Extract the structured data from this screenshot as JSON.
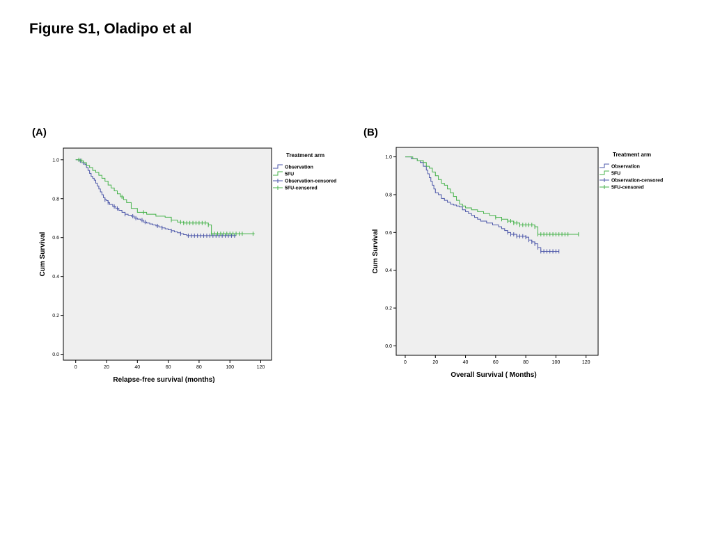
{
  "figure_title": "Figure S1, Oladipo et al",
  "colors": {
    "observation": "#4a55a8",
    "fiveFU": "#44b249",
    "plot_bg": "#efefef",
    "axis": "#000000"
  },
  "chart_data": [
    {
      "panel_label": "(A)",
      "type": "line",
      "step": true,
      "xlabel": "Relapse-free survival (months)",
      "ylabel": "Cum Survival",
      "xlim": [
        -8,
        127
      ],
      "ylim": [
        -0.03,
        1.06
      ],
      "xticks": [
        0,
        20,
        40,
        60,
        80,
        100,
        120
      ],
      "yticks": [
        "0.0",
        "0.2",
        "0.4",
        "0.6",
        "0.8",
        "1.0"
      ],
      "grid": false,
      "legend_title": "Treatment arm",
      "legend_position": "right-outside",
      "legend": [
        "Observation",
        "5FU",
        "Observation-censored",
        "5FU-censored"
      ],
      "series": [
        {
          "name": "Observation",
          "color_key": "observation",
          "x": [
            0,
            2,
            4,
            6,
            7,
            8,
            9,
            10,
            11,
            12,
            13,
            14,
            15,
            16,
            17,
            18,
            19,
            20,
            21,
            22,
            24,
            26,
            28,
            30,
            32,
            34,
            36,
            38,
            40,
            42,
            44,
            46,
            48,
            50,
            52,
            54,
            56,
            58,
            60,
            62,
            64,
            66,
            68,
            70,
            72,
            104
          ],
          "y": [
            1.0,
            0.995,
            0.985,
            0.975,
            0.96,
            0.945,
            0.93,
            0.915,
            0.905,
            0.895,
            0.88,
            0.865,
            0.85,
            0.835,
            0.82,
            0.805,
            0.795,
            0.79,
            0.78,
            0.77,
            0.76,
            0.75,
            0.74,
            0.73,
            0.72,
            0.715,
            0.71,
            0.7,
            0.695,
            0.69,
            0.68,
            0.675,
            0.67,
            0.665,
            0.66,
            0.655,
            0.65,
            0.645,
            0.64,
            0.635,
            0.63,
            0.625,
            0.62,
            0.615,
            0.61,
            0.61
          ],
          "censored_x": [
            3,
            5,
            19,
            21,
            25,
            27,
            32,
            37,
            39,
            43,
            45,
            53,
            56,
            62,
            68,
            73,
            75,
            77,
            79,
            81,
            83,
            85,
            87,
            89,
            91,
            93,
            95,
            97,
            99,
            101,
            103
          ]
        },
        {
          "name": "5FU",
          "color_key": "fiveFU",
          "x": [
            0,
            3,
            5,
            7,
            9,
            11,
            13,
            15,
            17,
            19,
            21,
            23,
            25,
            27,
            29,
            31,
            33,
            36,
            40,
            46,
            52,
            58,
            62,
            66,
            70,
            86,
            88,
            116
          ],
          "y": [
            1.0,
            0.995,
            0.985,
            0.97,
            0.96,
            0.945,
            0.935,
            0.92,
            0.905,
            0.89,
            0.87,
            0.855,
            0.84,
            0.825,
            0.81,
            0.795,
            0.78,
            0.75,
            0.73,
            0.72,
            0.71,
            0.705,
            0.69,
            0.68,
            0.675,
            0.665,
            0.62,
            0.62
          ],
          "censored_x": [
            2,
            4,
            30,
            44,
            62,
            68,
            70,
            72,
            74,
            76,
            78,
            80,
            82,
            84,
            86,
            88,
            90,
            92,
            94,
            96,
            98,
            100,
            102,
            104,
            106,
            108,
            115
          ]
        }
      ]
    },
    {
      "panel_label": "(B)",
      "type": "line",
      "step": true,
      "xlabel": "Overall Survival ( Months)",
      "ylabel": "Cum Survival",
      "xlim": [
        -6,
        128
      ],
      "ylim": [
        -0.05,
        1.05
      ],
      "xticks": [
        0,
        20,
        40,
        60,
        80,
        100,
        120
      ],
      "yticks": [
        "0.0",
        "0.2",
        "0.4",
        "0.6",
        "0.8",
        "1.0"
      ],
      "grid": false,
      "legend_title": "Treatment arm",
      "legend_position": "right-outside",
      "legend": [
        "Observation",
        "5FU",
        "Observation-censored",
        "5FU-censored"
      ],
      "series": [
        {
          "name": "Observation",
          "color_key": "observation",
          "x": [
            0,
            4,
            8,
            10,
            12,
            14,
            15,
            16,
            17,
            18,
            19,
            20,
            22,
            24,
            26,
            28,
            30,
            32,
            34,
            36,
            38,
            40,
            42,
            44,
            46,
            48,
            50,
            54,
            58,
            62,
            64,
            66,
            68,
            70,
            74,
            80,
            82,
            84,
            86,
            88,
            90,
            102
          ],
          "y": [
            1.0,
            0.99,
            0.98,
            0.97,
            0.95,
            0.93,
            0.91,
            0.89,
            0.87,
            0.85,
            0.83,
            0.81,
            0.8,
            0.78,
            0.77,
            0.76,
            0.75,
            0.745,
            0.74,
            0.735,
            0.72,
            0.71,
            0.7,
            0.69,
            0.68,
            0.67,
            0.66,
            0.65,
            0.64,
            0.63,
            0.62,
            0.61,
            0.6,
            0.59,
            0.58,
            0.575,
            0.56,
            0.55,
            0.54,
            0.52,
            0.5,
            0.5
          ],
          "censored_x": [
            68,
            70,
            72,
            74,
            76,
            78,
            80,
            82,
            84,
            86,
            88,
            90,
            92,
            94,
            96,
            98,
            100,
            102
          ]
        },
        {
          "name": "5FU",
          "color_key": "fiveFU",
          "x": [
            0,
            5,
            8,
            12,
            14,
            16,
            18,
            20,
            22,
            24,
            26,
            28,
            30,
            32,
            34,
            36,
            38,
            40,
            44,
            48,
            52,
            56,
            60,
            64,
            68,
            72,
            76,
            86,
            88,
            115
          ],
          "y": [
            1.0,
            0.99,
            0.98,
            0.97,
            0.95,
            0.94,
            0.92,
            0.9,
            0.88,
            0.86,
            0.85,
            0.83,
            0.81,
            0.79,
            0.77,
            0.75,
            0.74,
            0.73,
            0.72,
            0.71,
            0.7,
            0.69,
            0.68,
            0.67,
            0.66,
            0.65,
            0.64,
            0.63,
            0.59,
            0.59
          ],
          "censored_x": [
            60,
            64,
            68,
            70,
            72,
            74,
            76,
            78,
            80,
            82,
            84,
            86,
            88,
            90,
            92,
            94,
            96,
            98,
            100,
            102,
            104,
            106,
            108,
            115
          ]
        }
      ]
    }
  ]
}
